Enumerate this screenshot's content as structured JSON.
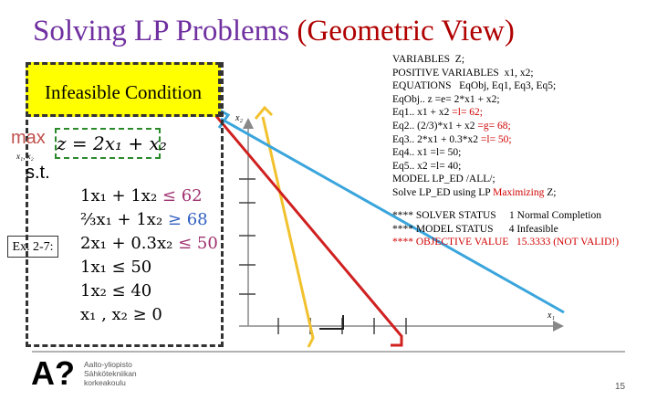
{
  "title": {
    "main": "Solving LP Problems",
    "paren": "(Geometric View)"
  },
  "box_label": "Infeasible Condition",
  "objective": {
    "sense": "max",
    "under": "x₁, x₂",
    "expr": "z = 2x₁ + x₂"
  },
  "st": "s.t.",
  "example": "Ex. 2-7:",
  "constraints": [
    {
      "lhs": "1x₁ + 1x₂",
      "rhs": "≤ 62"
    },
    {
      "lhs": "⅔x₁ + 1x₂",
      "rhs": "≥ 68"
    },
    {
      "lhs": "2x₁ + 0.3x₂",
      "rhs": "≤ 50"
    },
    {
      "lhs": "1x₁ ≤ 50"
    },
    {
      "lhs": "1x₂ ≤ 40"
    },
    {
      "lhs": "x₁ , x₂ ≥ 0"
    }
  ],
  "axis": {
    "y": "x₂",
    "x": "x₁"
  },
  "code": [
    [
      "VARIABLES  Z;"
    ],
    [
      "POSITIVE VARIABLES  x1, x2;"
    ],
    [
      "EQUATIONS   EqObj, Eq1, Eq3, Eq5;"
    ],
    [
      "EqObj.. z =e= 2*x1 + x2;"
    ],
    [
      "Eq1.. x1 + x2 ",
      "=l= 62;"
    ],
    [
      "Eq2.. (2/3)*x1 + x2 ",
      "=g= 68;"
    ],
    [
      "Eq3.. 2*x1 + 0.3*x2 ",
      "=l= 50;"
    ],
    [
      "Eq4.. x1 =l= 50;"
    ],
    [
      "Eq5.. x2 =l= 40;"
    ],
    [
      "MODEL LP_ED /ALL/;"
    ],
    [
      "Solve LP_ED using LP ",
      "Maximizing",
      " Z;"
    ]
  ],
  "status": [
    "**** SOLVER STATUS     1 Normal Completion",
    "**** MODEL STATUS      4 Infeasible",
    "**** OBJECTIVE VALUE   15.3333 (NOT VALID!)"
  ],
  "logo": {
    "mark": "A?",
    "name": "Aalto-yliopisto",
    "school": "Sähkötekniikan",
    "unit": "korkeakoulu"
  },
  "page_number": "15"
}
